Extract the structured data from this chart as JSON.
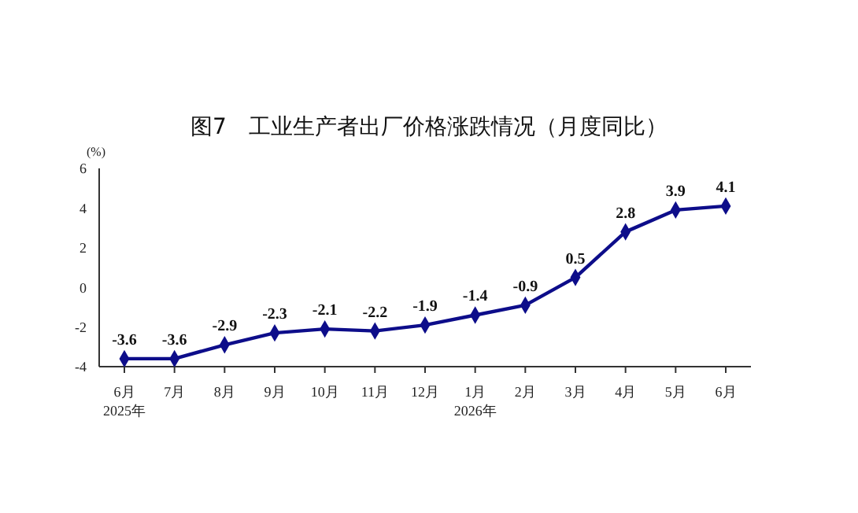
{
  "chart_data": {
    "type": "line",
    "title": "图7　工业生产者出厂价格涨跌情况（月度同比）",
    "ylabel": "(%)",
    "categories": [
      "6月\n2025年",
      "7月",
      "8月",
      "9月",
      "10月",
      "11月",
      "12月",
      "1月\n2026年",
      "2月",
      "3月",
      "4月",
      "5月",
      "6月"
    ],
    "series": [
      {
        "color": "#0d0d8a",
        "values": [
          -3.6,
          -3.6,
          -2.9,
          -2.3,
          -2.1,
          -2.2,
          -1.9,
          -1.4,
          -0.9,
          0.5,
          2.8,
          3.9,
          4.1
        ]
      }
    ],
    "ylim": [
      -4,
      6
    ],
    "yticks": [
      -4,
      -2,
      0,
      2,
      4,
      6
    ],
    "grid": false,
    "legend": false,
    "marker": "diamond",
    "line_style": "solid",
    "data_labels": true
  }
}
